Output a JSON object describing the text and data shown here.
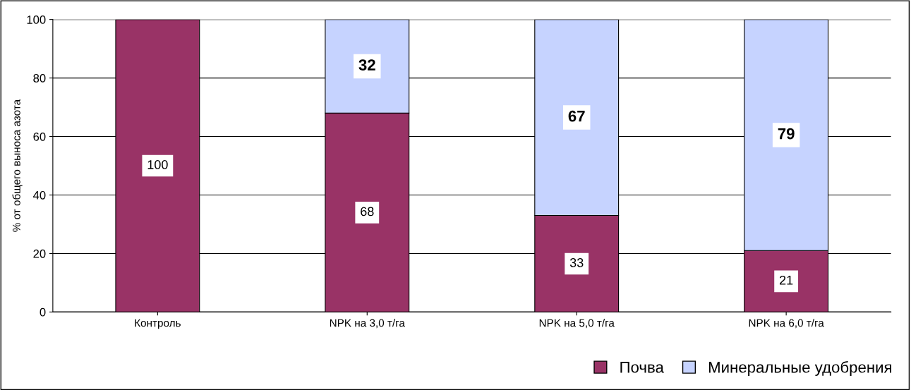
{
  "chart_data": {
    "type": "bar",
    "stacked": true,
    "ylabel": "% от общего выноса азота",
    "categories": [
      "Контроль",
      "NPK на 3,0 т/га",
      "NPK на 5,0 т/га",
      "NPK на 6,0 т/га"
    ],
    "series": [
      {
        "name": "Почва",
        "color": "#993366",
        "values": [
          100,
          68,
          33,
          21
        ]
      },
      {
        "name": "Минеральные удобрения",
        "color": "#c6d3ff",
        "values": [
          null,
          32,
          67,
          79
        ]
      }
    ],
    "ylim": [
      0,
      100
    ],
    "yticks": [
      0,
      20,
      40,
      60,
      80,
      100
    ],
    "grid": "y",
    "legend": "bottom right",
    "data_labels": true
  }
}
